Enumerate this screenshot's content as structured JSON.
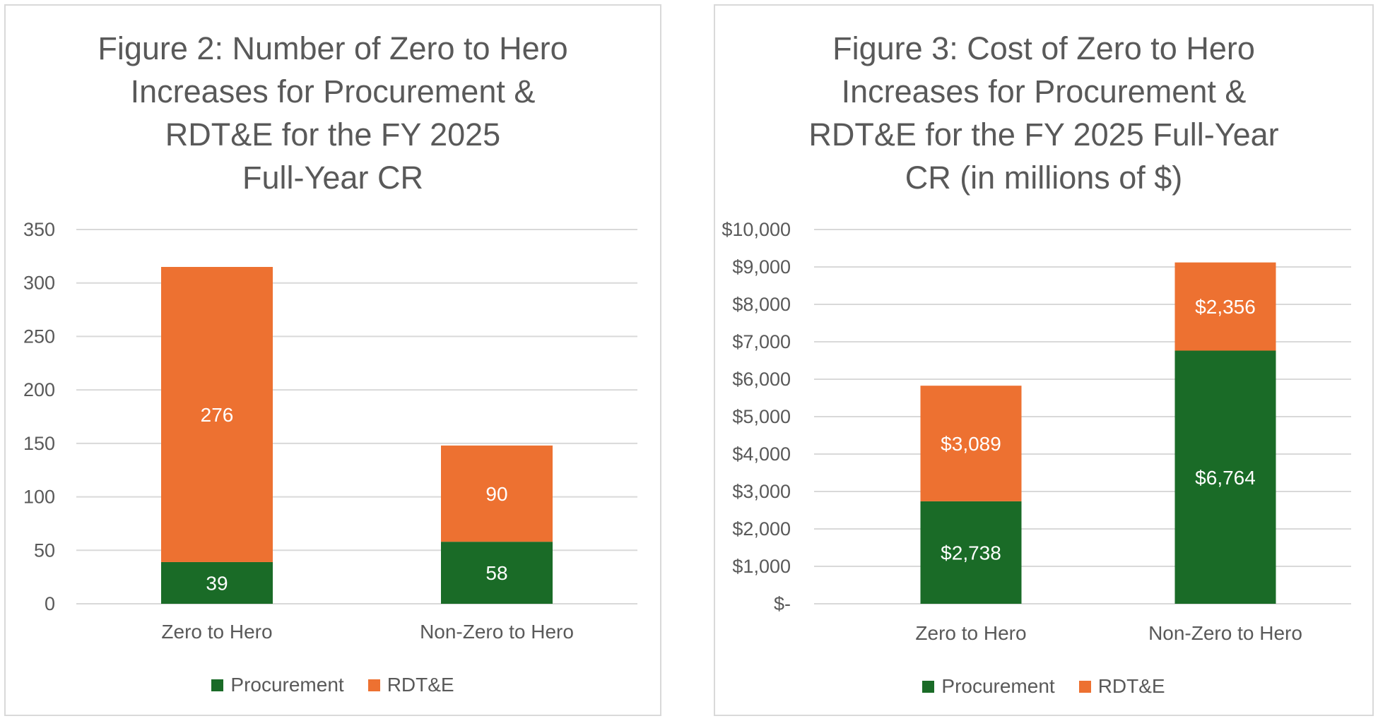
{
  "colors": {
    "procurement": "#1a6b27",
    "rdte": "#ed7131",
    "grid": "#d9d9d9"
  },
  "chart_data": [
    {
      "type": "bar",
      "stacked": true,
      "title_lines": [
        "Figure 2: Number of Zero to Hero",
        "Increases for Procurement &",
        "RDT&E for the FY 2025",
        "Full-Year CR"
      ],
      "categories": [
        "Zero to Hero",
        "Non-Zero to Hero"
      ],
      "series": [
        {
          "name": "Procurement",
          "values": [
            39,
            58
          ],
          "labels": [
            "39",
            "58"
          ]
        },
        {
          "name": "RDT&E",
          "values": [
            276,
            90
          ],
          "labels": [
            "276",
            "90"
          ]
        }
      ],
      "ylim": [
        0,
        350
      ],
      "yticks": [
        0,
        50,
        100,
        150,
        200,
        250,
        300,
        350
      ],
      "ytick_labels": [
        "0",
        "50",
        "100",
        "150",
        "200",
        "250",
        "300",
        "350"
      ],
      "grid": true,
      "legend_position": "bottom"
    },
    {
      "type": "bar",
      "stacked": true,
      "title_lines": [
        "Figure 3: Cost of Zero to Hero",
        "Increases for Procurement &",
        "RDT&E for the FY 2025 Full-Year",
        "CR (in millions of $)"
      ],
      "categories": [
        "Zero to Hero",
        "Non-Zero to Hero"
      ],
      "series": [
        {
          "name": "Procurement",
          "values": [
            2738,
            6764
          ],
          "labels": [
            "$2,738",
            "$6,764"
          ]
        },
        {
          "name": "RDT&E",
          "values": [
            3089,
            2356
          ],
          "labels": [
            "$3,089",
            "$2,356"
          ]
        }
      ],
      "ylim": [
        0,
        10000
      ],
      "yticks": [
        0,
        1000,
        2000,
        3000,
        4000,
        5000,
        6000,
        7000,
        8000,
        9000,
        10000
      ],
      "ytick_labels": [
        "$-",
        "$1,000",
        "$2,000",
        "$3,000",
        "$4,000",
        "$5,000",
        "$6,000",
        "$7,000",
        "$8,000",
        "$9,000",
        "$10,000"
      ],
      "grid": true,
      "legend_position": "bottom"
    }
  ]
}
